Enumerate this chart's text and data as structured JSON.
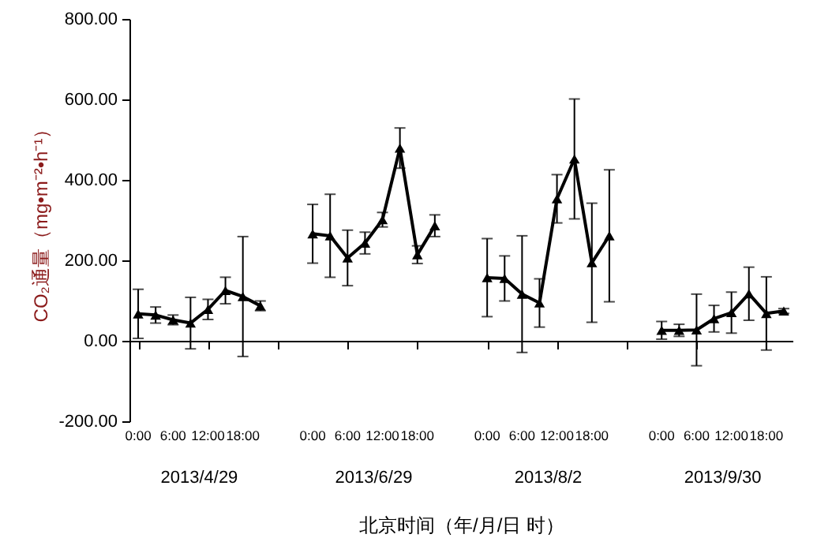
{
  "chart_data": {
    "type": "line",
    "xlabel": "北京时间（年/月/日 时）",
    "ylabel": "CO₂通量（mg•m⁻²•h⁻¹）",
    "categories": [
      "0:00",
      null,
      "6:00",
      null,
      "12:00",
      null,
      "18:00",
      null,
      null,
      null,
      "0:00",
      null,
      "6:00",
      null,
      "12:00",
      null,
      "18:00",
      null,
      null,
      null,
      "0:00",
      null,
      "6:00",
      null,
      "12:00",
      null,
      "18:00",
      null,
      null,
      null,
      "0:00",
      null,
      "6:00",
      null,
      "12:00",
      null,
      "18:00",
      null
    ],
    "series": [
      {
        "color": "#000000",
        "values": [
          67,
          64,
          52,
          44,
          78,
          125,
          110,
          87,
          null,
          null,
          266,
          261,
          206,
          243,
          301,
          479,
          214,
          286,
          null,
          null,
          157,
          155,
          116,
          94,
          353,
          452,
          194,
          261,
          null,
          null,
          26,
          26,
          27,
          55,
          70,
          117,
          68,
          74
        ],
        "errors": [
          61,
          20,
          12,
          64,
          25,
          33,
          149,
          12,
          null,
          null,
          73,
          103,
          69,
          27,
          18,
          50,
          22,
          27,
          null,
          null,
          97,
          56,
          145,
          60,
          60,
          149,
          148,
          164,
          null,
          null,
          22,
          15,
          89,
          33,
          51,
          66,
          91,
          6
        ]
      }
    ],
    "annotations": [
      "2013/4/29",
      "2013/6/29",
      "2013/8/2",
      "2013/9/30"
    ],
    "ylim": [
      -200,
      800
    ],
    "yticks": [
      {
        "value": -200,
        "label": "-200.00"
      },
      {
        "value": 0,
        "label": "0.00"
      },
      {
        "value": 200,
        "label": "200.00"
      },
      {
        "value": 400,
        "label": "400.00"
      },
      {
        "value": 600,
        "label": "600.00"
      },
      {
        "value": 800,
        "label": "800.00"
      }
    ],
    "marker": "triangle",
    "line_style": "solid"
  }
}
